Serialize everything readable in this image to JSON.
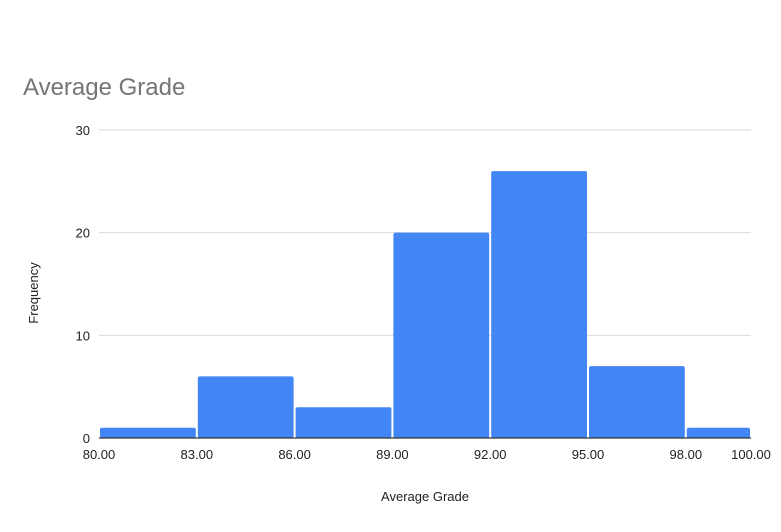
{
  "chart_data": {
    "type": "bar",
    "subtype": "histogram",
    "title": "Average Grade",
    "xlabel": "Average Grade",
    "ylabel": "Frequency",
    "bins": [
      {
        "start": 80,
        "end": 83,
        "value": 1
      },
      {
        "start": 83,
        "end": 86,
        "value": 6
      },
      {
        "start": 86,
        "end": 89,
        "value": 3
      },
      {
        "start": 89,
        "end": 92,
        "value": 20
      },
      {
        "start": 92,
        "end": 95,
        "value": 26
      },
      {
        "start": 95,
        "end": 98,
        "value": 7
      },
      {
        "start": 98,
        "end": 100,
        "value": 1
      }
    ],
    "x_ticks": [
      "80.00",
      "83.00",
      "86.00",
      "89.00",
      "92.00",
      "95.00",
      "98.00",
      "100.00"
    ],
    "y_ticks": [
      "0",
      "10",
      "20",
      "30"
    ],
    "xlim": [
      80,
      100
    ],
    "ylim": [
      0,
      30
    ],
    "grid": "horizontal",
    "legend": "none",
    "colors": {
      "bar": "#4285f4",
      "grid": "#d9d9d9",
      "axis": "#333333",
      "title": "#757575",
      "text": "#222222"
    }
  }
}
